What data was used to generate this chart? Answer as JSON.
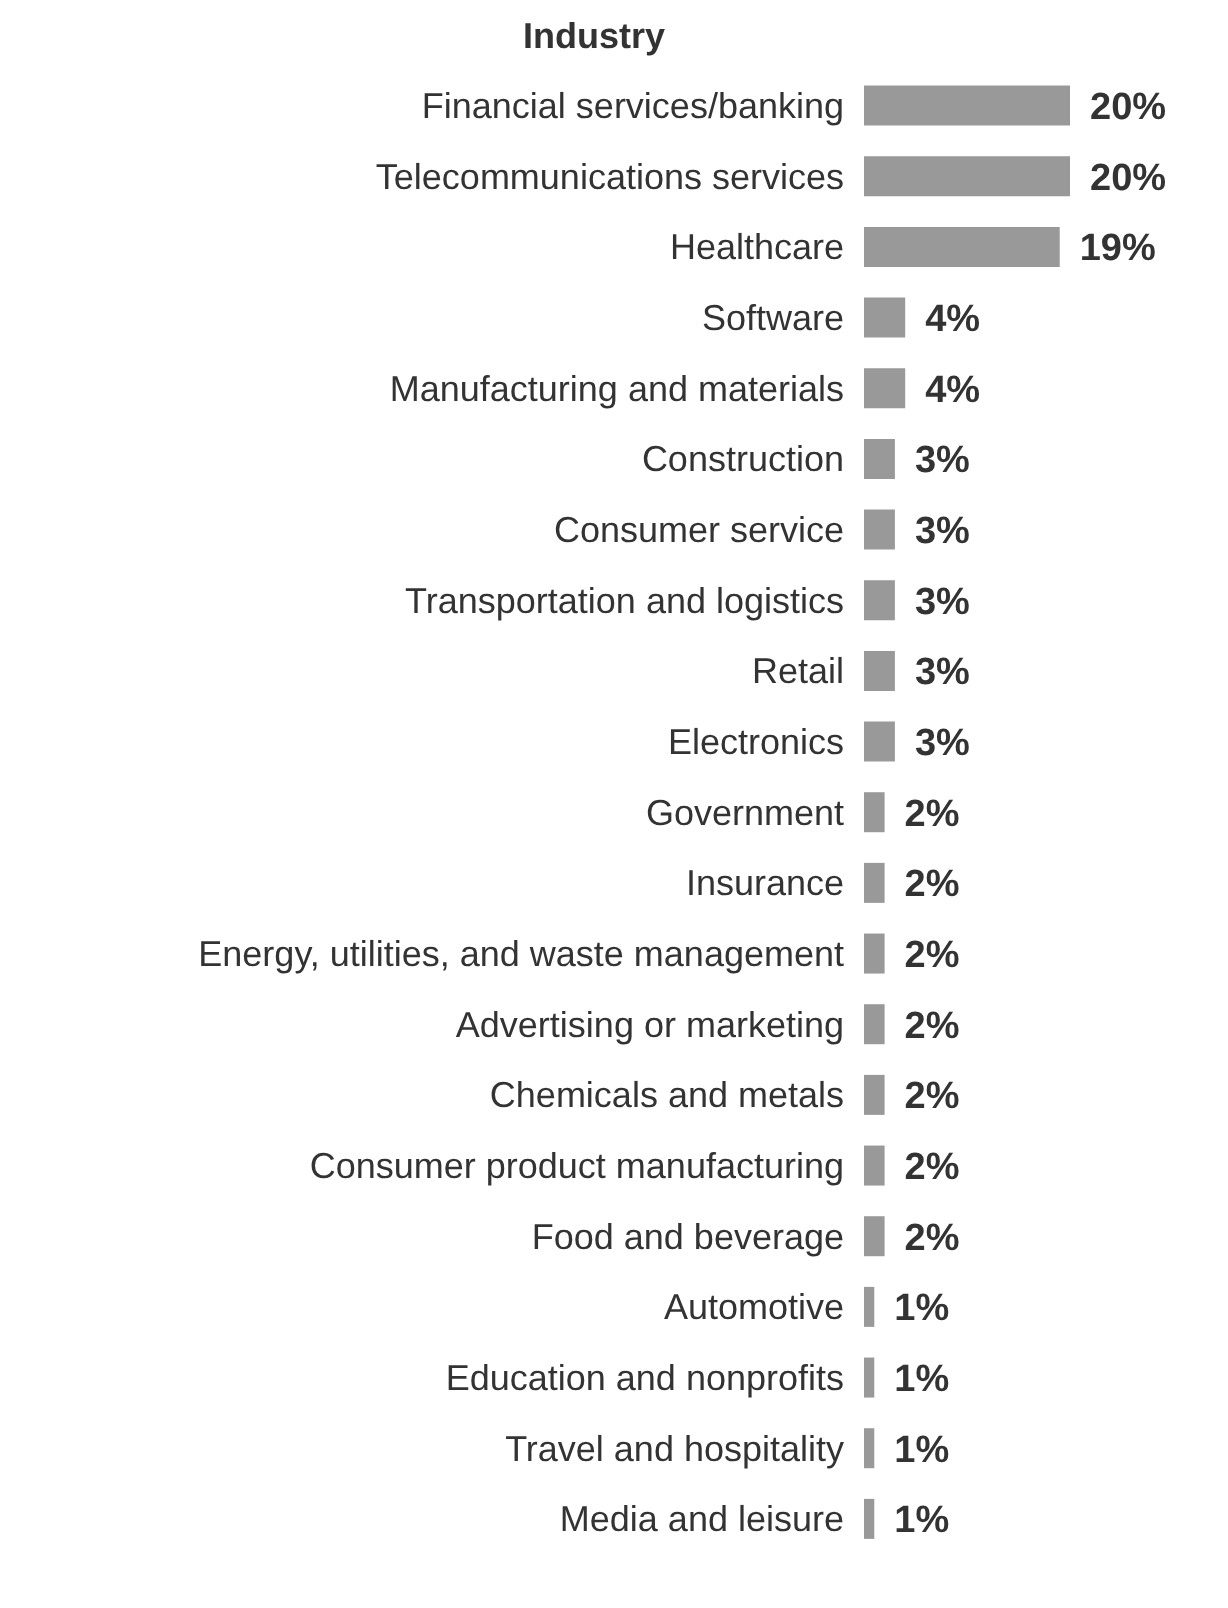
{
  "chart_data": {
    "type": "bar",
    "orientation": "horizontal",
    "title": "Industry",
    "categories": [
      "Financial services/banking",
      "Telecommunications services",
      "Healthcare",
      "Software",
      "Manufacturing and materials",
      "Construction",
      "Consumer service",
      "Transportation and logistics",
      "Retail",
      "Electronics",
      "Government",
      "Insurance",
      "Energy, utilities, and waste management",
      "Advertising or marketing",
      "Chemicals and metals",
      "Consumer product manufacturing",
      "Food and beverage",
      "Automotive",
      "Education and nonprofits",
      "Travel and hospitality",
      "Media and leisure"
    ],
    "values": [
      20,
      20,
      19,
      4,
      4,
      3,
      3,
      3,
      3,
      3,
      2,
      2,
      2,
      2,
      2,
      2,
      2,
      1,
      1,
      1,
      1
    ],
    "value_labels": [
      "20%",
      "20%",
      "19%",
      "4%",
      "4%",
      "3%",
      "3%",
      "3%",
      "3%",
      "3%",
      "2%",
      "2%",
      "2%",
      "2%",
      "2%",
      "2%",
      "2%",
      "1%",
      "1%",
      "1%",
      "1%"
    ],
    "color": "#999999"
  }
}
